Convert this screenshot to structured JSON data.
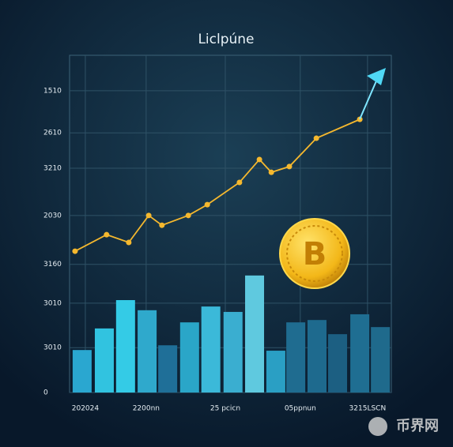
{
  "chart_data": {
    "type": "combo",
    "title": "Liclpúne",
    "xlim": [
      0,
      100
    ],
    "ylim": [
      0,
      100
    ],
    "grid": true,
    "xticks": [
      {
        "value": 4.9,
        "label": "202024"
      },
      {
        "value": 23.8,
        "label": "2200nn"
      },
      {
        "value": 48.4,
        "label": "25 pcicn"
      },
      {
        "value": 71.7,
        "label": "05ppnun"
      },
      {
        "value": 92.6,
        "label": "3215LSCN"
      }
    ],
    "yticks": [
      0,
      {
        "value": 13.3,
        "label": "3010"
      },
      {
        "value": 26.5,
        "label": "3010"
      },
      {
        "value": 38,
        "label": "3160"
      },
      {
        "value": 52.5,
        "label": "2030"
      },
      {
        "value": 66.5,
        "label": "3210"
      },
      {
        "value": 77,
        "label": "2610"
      },
      {
        "value": 89.5,
        "label": "1510"
      }
    ],
    "series": [
      {
        "type": "bar",
        "x": [
          3.9,
          10.8,
          17.4,
          24.1,
          30.5,
          37.3,
          43.9,
          50.8,
          57.5,
          64.1,
          70.3,
          76.9,
          83.3,
          90.2,
          96.6
        ],
        "values": [
          12.6,
          19,
          27.4,
          24.4,
          14,
          20.8,
          25.5,
          23.9,
          34.7,
          12.4,
          20.8,
          21.5,
          17.3,
          23.2,
          19.4
        ],
        "colors": [
          "#2aa7d0",
          "#31c3e0",
          "#34cbe6",
          "#2fa9cc",
          "#1f6f98",
          "#2aa6c8",
          "#3bb9d9",
          "#3aaed0",
          "#5fc9df",
          "#2a9fc4",
          "#1f6c90",
          "#1e6a8e",
          "#1c5f82",
          "#1f6e92",
          "#1f6a8c"
        ]
      },
      {
        "type": "line",
        "color": "#f5b82e",
        "x": [
          1.7,
          11.5,
          18.4,
          24.6,
          28.7,
          36.9,
          42.8,
          52.8,
          59,
          62.7,
          68.3,
          76.7,
          90.2
        ],
        "values": [
          41.9,
          46.8,
          44.5,
          52.5,
          49.6,
          52.5,
          55.7,
          62.3,
          69.1,
          65.3,
          67,
          75.4,
          81
        ]
      }
    ],
    "watermark": "币界网"
  }
}
